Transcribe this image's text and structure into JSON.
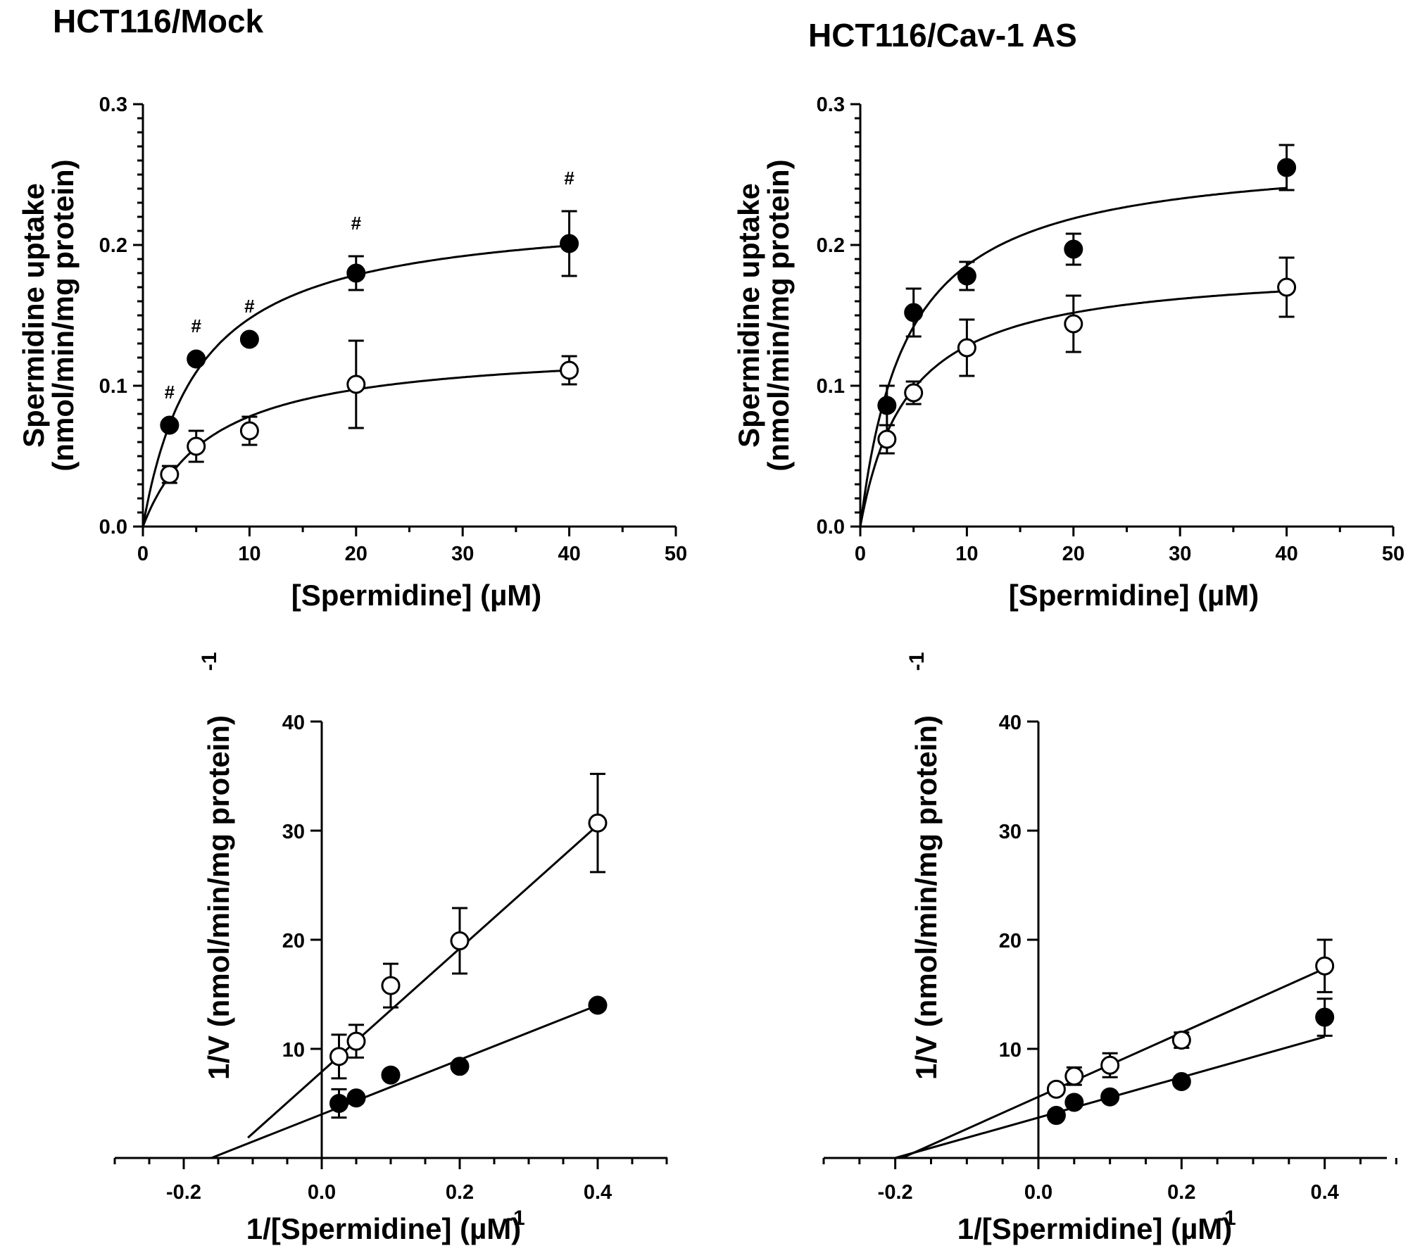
{
  "figure": {
    "titles": [
      "HCT116/Mock",
      "HCT116/Cav-1 AS"
    ]
  },
  "chart_data": [
    {
      "type": "scatter",
      "title": "HCT116/Mock",
      "xlabel": "[Spermidine] (µM)",
      "ylabel_line1": "Spermidine uptake",
      "ylabel_line2": "(nmol/min/mg protein)",
      "xlim": [
        0,
        50
      ],
      "ylim": [
        0,
        0.3
      ],
      "x_ticks": [
        "0",
        "10",
        "20",
        "30",
        "40",
        "50"
      ],
      "y_ticks": [
        "0.0",
        "0.1",
        "0.2",
        "0.3"
      ],
      "grid": false,
      "series": [
        {
          "marker": "filled-circle",
          "x": [
            2.5,
            5,
            10,
            20,
            40
          ],
          "y": [
            0.072,
            0.119,
            0.133,
            0.18,
            0.201
          ],
          "err": [
            0.004,
            0.004,
            0.004,
            0.012,
            0.023
          ],
          "show_err": [
            false,
            false,
            false,
            true,
            true
          ],
          "fit": {
            "model": "michaelis-menten",
            "vmax": 0.226,
            "km": 5.3
          }
        },
        {
          "marker": "open-circle",
          "x": [
            2.5,
            5,
            10,
            20,
            40
          ],
          "y": [
            0.037,
            0.057,
            0.068,
            0.101,
            0.111
          ],
          "err": [
            0.006,
            0.011,
            0.01,
            0.031,
            0.01
          ],
          "show_err": [
            true,
            true,
            true,
            true,
            true
          ],
          "fit": {
            "model": "michaelis-menten",
            "vmax": 0.129,
            "km": 6.5
          }
        }
      ],
      "annotations": [
        {
          "text": "#",
          "x": 2.5,
          "y": 0.072
        },
        {
          "text": "#",
          "x": 5,
          "y": 0.119
        },
        {
          "text": "#",
          "x": 10,
          "y": 0.133
        },
        {
          "text": "#",
          "x": 20,
          "y": 0.192
        },
        {
          "text": "#",
          "x": 40,
          "y": 0.224
        }
      ]
    },
    {
      "type": "scatter",
      "title": "HCT116/Cav-1 AS",
      "xlabel": "[Spermidine] (µM)",
      "ylabel_line1": "Spermidine uptake",
      "ylabel_line2": "(nmol/min/mg protein)",
      "xlim": [
        0,
        50
      ],
      "ylim": [
        0,
        0.3
      ],
      "x_ticks": [
        "0",
        "10",
        "20",
        "30",
        "40",
        "50"
      ],
      "y_ticks": [
        "0.0",
        "0.1",
        "0.2",
        "0.3"
      ],
      "grid": false,
      "series": [
        {
          "marker": "filled-circle",
          "x": [
            2.5,
            5,
            10,
            20,
            40
          ],
          "y": [
            0.086,
            0.152,
            0.178,
            0.197,
            0.255
          ],
          "err": [
            0.014,
            0.017,
            0.01,
            0.011,
            0.016
          ],
          "show_err": [
            true,
            true,
            true,
            true,
            true
          ],
          "fit": {
            "model": "michaelis-menten",
            "vmax": 0.267,
            "km": 4.4
          }
        },
        {
          "marker": "open-circle",
          "x": [
            2.5,
            5,
            10,
            20,
            40
          ],
          "y": [
            0.062,
            0.095,
            0.127,
            0.144,
            0.17
          ],
          "err": [
            0.01,
            0.008,
            0.02,
            0.02,
            0.021
          ],
          "show_err": [
            true,
            true,
            true,
            true,
            true
          ],
          "fit": {
            "model": "michaelis-menten",
            "vmax": 0.186,
            "km": 4.5
          }
        }
      ],
      "annotations": []
    },
    {
      "type": "scatter",
      "title": "",
      "xlabel": "1/[Spermidine] (µM)",
      "xlabel_sup": "-1",
      "ylabel": "1/V (nmol/min/mg protein)",
      "ylabel_sup": "-1",
      "xlim": [
        -0.3,
        0.5
      ],
      "ylim": [
        0,
        40
      ],
      "x_ticks": [
        "-0.2",
        "0.0",
        "0.2",
        "0.4"
      ],
      "y_ticks": [
        "10",
        "20",
        "30",
        "40"
      ],
      "grid": false,
      "series": [
        {
          "marker": "filled-circle",
          "x": [
            0.025,
            0.05,
            0.1,
            0.2,
            0.4
          ],
          "y": [
            5.0,
            5.5,
            7.6,
            8.4,
            14.0
          ],
          "err": [
            1.3,
            0.3,
            0.3,
            0.3,
            0.3
          ],
          "show_err": [
            true,
            false,
            false,
            false,
            false
          ],
          "fit": {
            "model": "linear",
            "x_range": [
              -0.16,
              0.4
            ],
            "slope": 25.0,
            "intercept": 4.0
          }
        },
        {
          "marker": "open-circle",
          "x": [
            0.025,
            0.05,
            0.1,
            0.2,
            0.4
          ],
          "y": [
            9.3,
            10.7,
            15.8,
            19.9,
            30.7
          ],
          "err": [
            2.0,
            1.5,
            2.0,
            3.0,
            4.5
          ],
          "show_err": [
            true,
            true,
            true,
            true,
            true
          ],
          "fit": {
            "model": "linear",
            "x_range": [
              -0.107,
              0.4
            ],
            "slope": 56.5,
            "intercept": 7.9
          }
        }
      ]
    },
    {
      "type": "scatter",
      "title": "",
      "xlabel": "1/[Spermidine] (µM)",
      "xlabel_sup": "-1",
      "ylabel": "1/V (nmol/min/mg protein)",
      "ylabel_sup": "-1",
      "xlim": [
        -0.3,
        0.5
      ],
      "ylim": [
        0,
        40
      ],
      "x_ticks": [
        "-0.2",
        "0.0",
        "0.2",
        "0.4"
      ],
      "y_ticks": [
        "10",
        "20",
        "30",
        "40"
      ],
      "grid": false,
      "series": [
        {
          "marker": "filled-circle",
          "x": [
            0.025,
            0.05,
            0.1,
            0.2,
            0.4
          ],
          "y": [
            3.9,
            5.1,
            5.6,
            7.0,
            12.9
          ],
          "err": [
            0.3,
            0.3,
            0.3,
            0.3,
            1.7
          ],
          "show_err": [
            false,
            false,
            false,
            false,
            true
          ],
          "fit": {
            "model": "linear",
            "x_range": [
              -0.2,
              0.4
            ],
            "slope": 18.5,
            "intercept": 3.7
          }
        },
        {
          "marker": "open-circle",
          "x": [
            0.025,
            0.05,
            0.1,
            0.2,
            0.4
          ],
          "y": [
            6.3,
            7.5,
            8.5,
            10.8,
            17.6
          ],
          "err": [
            0.3,
            0.8,
            1.1,
            0.7,
            2.4
          ],
          "show_err": [
            false,
            true,
            true,
            true,
            true
          ],
          "fit": {
            "model": "linear",
            "x_range": [
              -0.19,
              0.4
            ],
            "slope": 29.4,
            "intercept": 5.6
          }
        }
      ]
    }
  ]
}
